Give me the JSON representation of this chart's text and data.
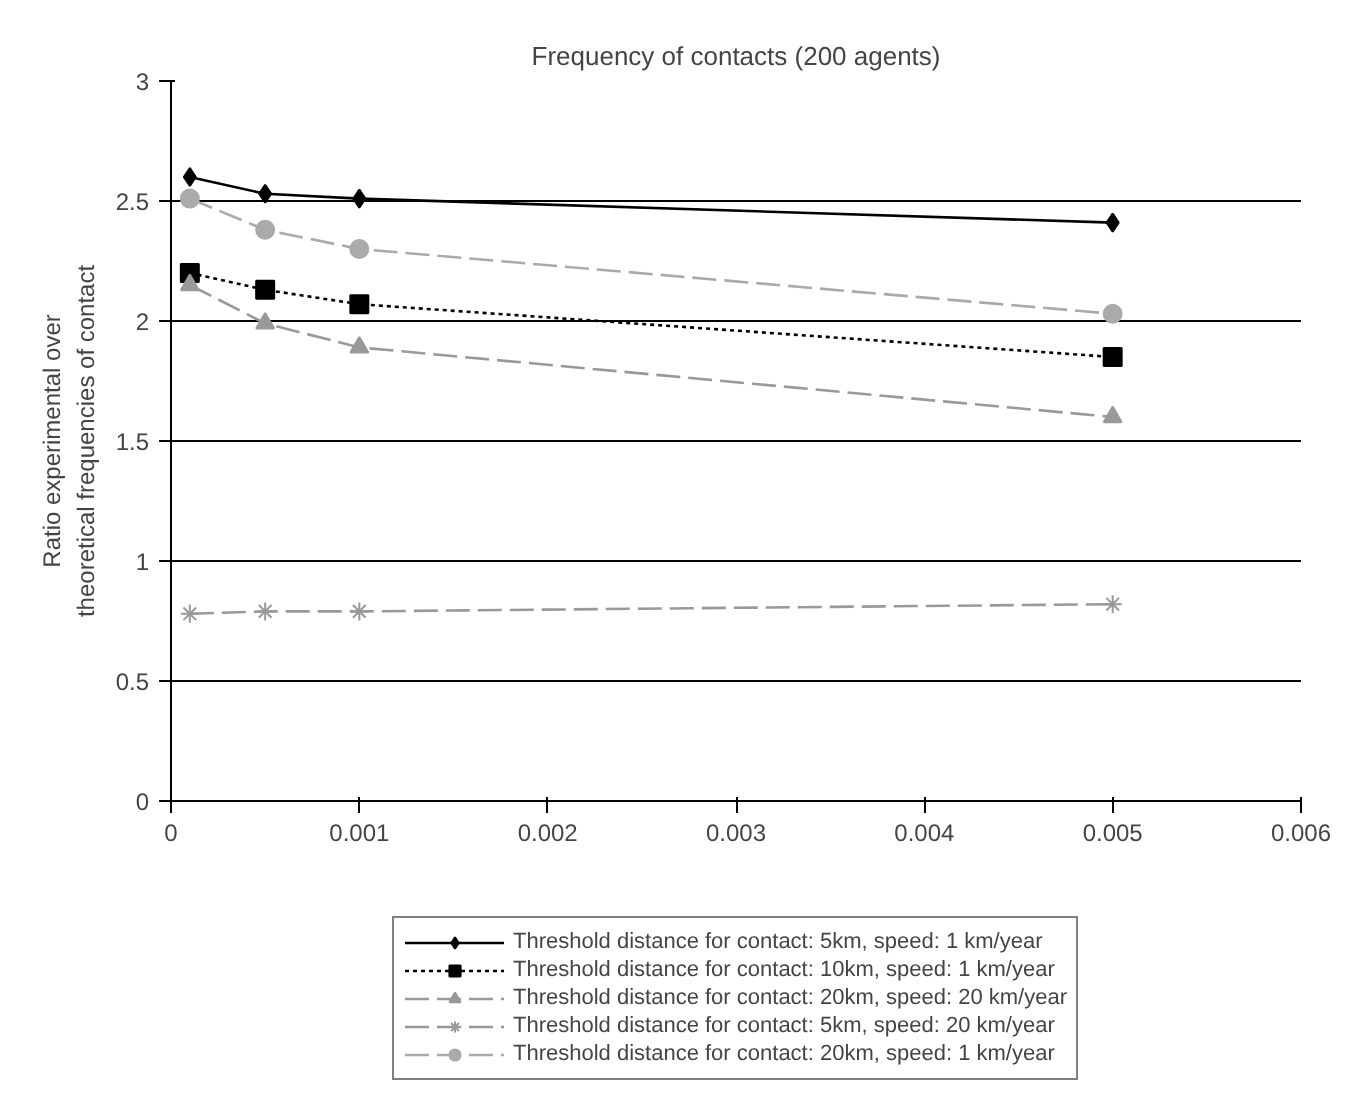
{
  "chart_data": {
    "type": "line",
    "title": "Frequency of contacts (200 agents)",
    "ylabel": "Ratio experimental over\ntheoretical frequencies of contact",
    "x": [
      0.0001,
      0.0005,
      0.001,
      0.005
    ],
    "xlim": [
      0,
      0.006
    ],
    "xticks": [
      0,
      0.001,
      0.002,
      0.003,
      0.004,
      0.005,
      0.006
    ],
    "ylim": [
      0,
      3
    ],
    "yticks": [
      0,
      0.5,
      1,
      1.5,
      2,
      2.5,
      3
    ],
    "grid": "y",
    "legend": "bottom",
    "series": [
      {
        "name": "Threshold distance for contact: 5km, speed: 1 km/year",
        "color": "#000000",
        "marker": "diamond",
        "line_style": "solid",
        "values": [
          2.6,
          2.53,
          2.51,
          2.41
        ]
      },
      {
        "name": "Threshold distance for contact: 10km, speed: 1 km/year",
        "color": "#000000",
        "marker": "square",
        "line_style": "dotted",
        "values": [
          2.2,
          2.13,
          2.07,
          1.85
        ]
      },
      {
        "name": "Threshold distance for contact: 20km, speed: 20 km/year",
        "color": "#999999",
        "marker": "triangle",
        "line_style": "dashed",
        "values": [
          2.15,
          1.99,
          1.89,
          1.6
        ]
      },
      {
        "name": "Threshold distance for contact: 5km, speed: 20 km/year",
        "color": "#999999",
        "marker": "cross",
        "line_style": "dashed",
        "values": [
          0.78,
          0.79,
          0.79,
          0.82
        ]
      },
      {
        "name": "Threshold distance for contact: 20km, speed: 1 km/year",
        "color": "#aaaaaa",
        "marker": "circle",
        "line_style": "dashed",
        "values": [
          2.51,
          2.38,
          2.3,
          2.03
        ]
      }
    ]
  }
}
